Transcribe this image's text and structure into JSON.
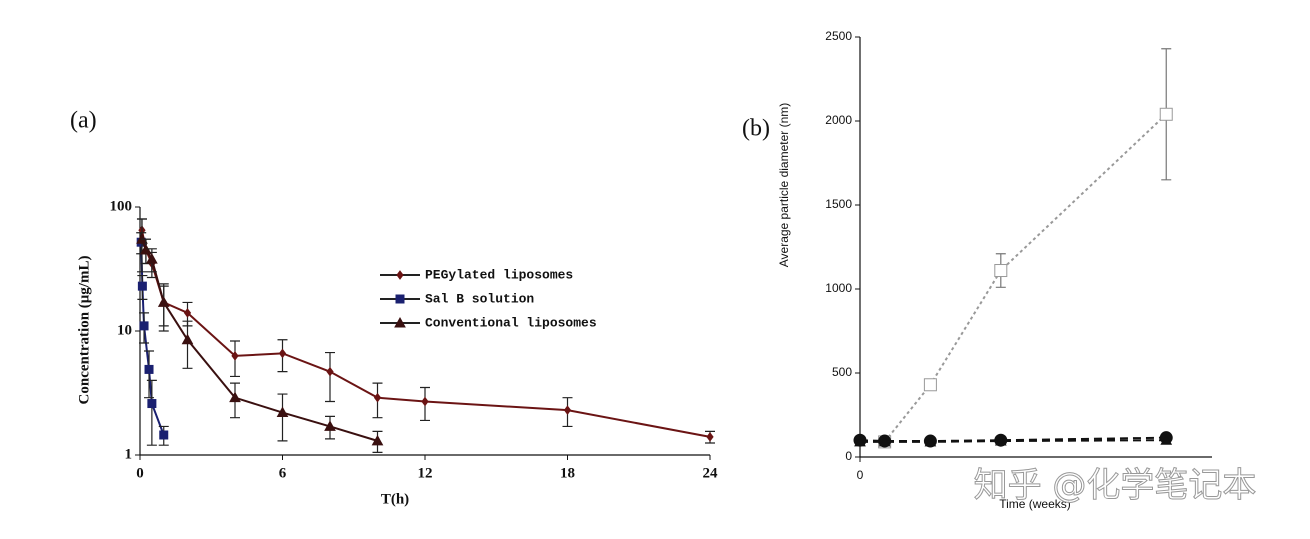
{
  "chart_data": [
    {
      "type": "line",
      "panel_label": "(a)",
      "x_label": "T(h)",
      "y_label": "Concentration (μg/mL)",
      "log_y": true,
      "xlim": [
        0,
        24
      ],
      "xticks": [
        0,
        6,
        12,
        18,
        24
      ],
      "ylim": [
        1,
        100
      ],
      "yticks": [
        1,
        10,
        100
      ],
      "legend": true,
      "series": [
        {
          "name": "PEGylated liposomes",
          "color": "#6b1414",
          "marker": "diamond",
          "x": [
            0.083,
            0.25,
            0.5,
            1,
            2,
            4,
            6,
            8,
            10,
            12,
            18,
            24
          ],
          "values": [
            65,
            45,
            35,
            17,
            14,
            6.3,
            6.6,
            4.7,
            2.9,
            2.7,
            2.3,
            1.4
          ],
          "errors": [
            15,
            10,
            8,
            7,
            3,
            2,
            1.9,
            2,
            0.9,
            0.8,
            0.6,
            0.15
          ]
        },
        {
          "name": "Sal B solution",
          "color": "#1a2070",
          "marker": "square",
          "x": [
            0.05,
            0.1,
            0.17,
            0.38,
            0.5,
            1
          ],
          "values": [
            52,
            23,
            11,
            4.9,
            2.6,
            1.45
          ],
          "errors": [
            10,
            5,
            3,
            2,
            1.4,
            0.25
          ]
        },
        {
          "name": "Conventional liposomes",
          "color": "#3a1010",
          "marker": "triangle",
          "x": [
            0.083,
            0.25,
            0.5,
            1,
            2,
            4,
            6,
            8,
            10
          ],
          "values": [
            55,
            45,
            38,
            17,
            8.5,
            2.9,
            2.2,
            1.7,
            1.3
          ],
          "errors": [
            25,
            10,
            8,
            6,
            3.5,
            0.9,
            0.9,
            0.35,
            0.25
          ]
        }
      ]
    },
    {
      "type": "line",
      "panel_label": "(b)",
      "x_label": "Time (weeks)",
      "y_label": "Average particle diameter (nm)",
      "log_y": false,
      "xlim": [
        0,
        10
      ],
      "xticks": [
        0
      ],
      "ylim": [
        0,
        2500
      ],
      "yticks": [
        0,
        500,
        1000,
        1500,
        2000,
        2500
      ],
      "legend": false,
      "x": [
        0,
        0.7,
        2,
        4,
        8.7
      ],
      "series": [
        {
          "color": "#999999",
          "marker": "open-square",
          "dash": "3,3",
          "values": [
            null,
            90,
            430,
            1110,
            2040
          ],
          "errors": [
            null,
            null,
            20,
            100,
            390
          ]
        },
        {
          "color": "#111111",
          "marker": "circle",
          "dash": "8,5",
          "values": [
            100,
            95,
            95,
            100,
            115
          ],
          "errors": [
            null,
            null,
            null,
            null,
            null
          ]
        },
        {
          "color": "#111111",
          "marker": "triangle",
          "dash": "8,5",
          "values": [
            90,
            90,
            90,
            95,
            100
          ],
          "errors": [
            null,
            null,
            null,
            null,
            null
          ]
        }
      ]
    }
  ],
  "watermark": "知乎 @化学笔记本"
}
